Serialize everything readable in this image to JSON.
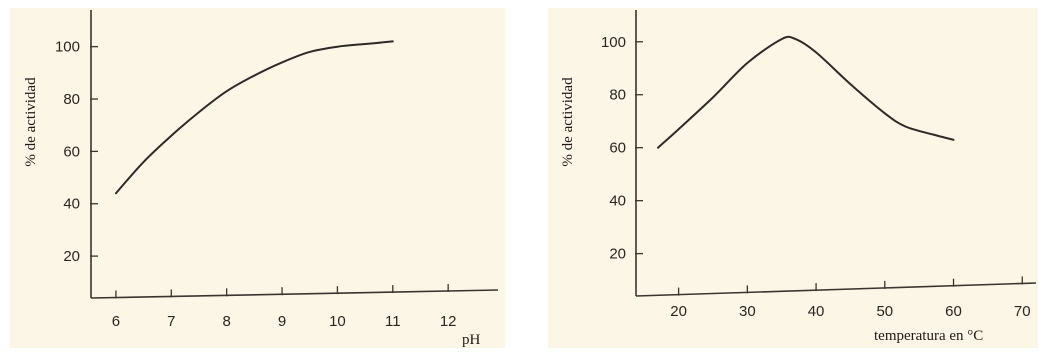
{
  "background_color": "#FBF6E6",
  "line_color": "#2E2A26",
  "chart_data": [
    {
      "type": "line",
      "xlabel": "pH",
      "ylabel": "% de actividad",
      "xticks": [
        6,
        7,
        8,
        9,
        10,
        11,
        12
      ],
      "yticks": [
        20,
        40,
        60,
        80,
        100
      ],
      "xlim": [
        5.55,
        12.9
      ],
      "ylim": [
        4,
        114
      ],
      "x": [
        6,
        6.5,
        7,
        7.5,
        8,
        8.5,
        9,
        9.5,
        10,
        10.5,
        11
      ],
      "y": [
        44,
        56,
        66,
        75,
        83,
        89,
        94,
        98,
        100,
        101,
        102
      ]
    },
    {
      "type": "line",
      "xlabel": "temperatura en °C",
      "ylabel": "% de actividad",
      "xticks": [
        20,
        30,
        40,
        50,
        60,
        70
      ],
      "yticks": [
        20,
        40,
        60,
        80,
        100
      ],
      "xlim": [
        13.8,
        72
      ],
      "ylim": [
        4,
        112
      ],
      "x": [
        17,
        20,
        25,
        30,
        35,
        37,
        40,
        45,
        50,
        53,
        57,
        60
      ],
      "y": [
        60,
        67,
        79,
        92,
        101,
        101,
        96,
        84,
        73,
        68,
        65,
        63
      ]
    }
  ]
}
